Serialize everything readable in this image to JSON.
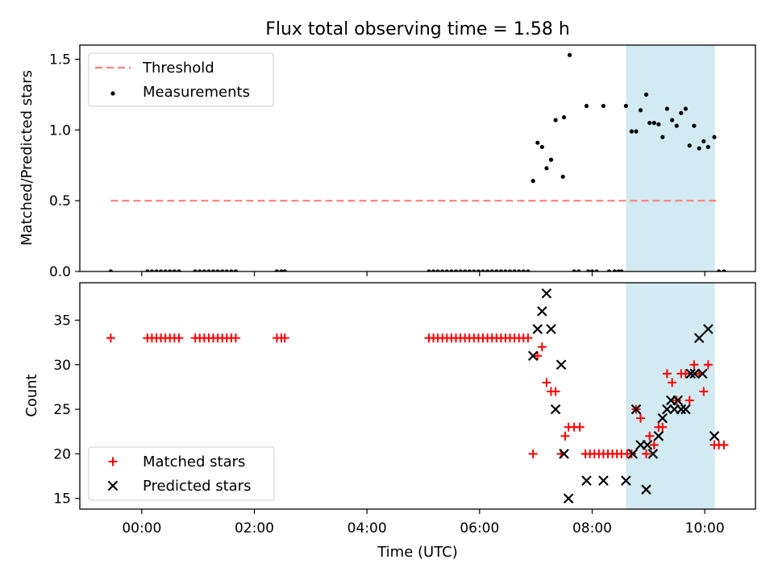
{
  "chart_data": {
    "title": "Flux total observing time = 1.58 h",
    "xlabel": "Time (UTC)",
    "xlim": [
      -1.1,
      10.9
    ],
    "xticks": [
      {
        "value": 0,
        "label": "00:00"
      },
      {
        "value": 2,
        "label": "02:00"
      },
      {
        "value": 4,
        "label": "04:00"
      },
      {
        "value": 6,
        "label": "06:00"
      },
      {
        "value": 8,
        "label": "08:00"
      },
      {
        "value": 10,
        "label": "10:00"
      }
    ],
    "highlight_span": [
      8.6,
      10.18
    ],
    "colors": {
      "highlight": "#add8e6",
      "threshold": "#ff7f7f",
      "measurements": "#000000",
      "matched": "#ff0000",
      "predicted": "#000000"
    },
    "top": {
      "type": "scatter",
      "ylabel": "Matched/Predicted stars",
      "ylim": [
        0,
        1.6
      ],
      "yticks": [
        {
          "value": 0,
          "label": "0.0"
        },
        {
          "value": 0.5,
          "label": "0.5"
        },
        {
          "value": 1.0,
          "label": "1.0"
        },
        {
          "value": 1.5,
          "label": "1.5"
        }
      ],
      "threshold": {
        "value": 0.5,
        "x_range": [
          -0.55,
          10.25
        ],
        "label": "Threshold"
      },
      "measurements_label": "Measurements",
      "measurements": [
        [
          -0.55,
          0
        ],
        [
          0.1,
          0
        ],
        [
          0.18,
          0
        ],
        [
          0.26,
          0
        ],
        [
          0.34,
          0
        ],
        [
          0.42,
          0
        ],
        [
          0.5,
          0
        ],
        [
          0.58,
          0
        ],
        [
          0.66,
          0
        ],
        [
          0.95,
          0
        ],
        [
          1.03,
          0
        ],
        [
          1.11,
          0
        ],
        [
          1.19,
          0
        ],
        [
          1.27,
          0
        ],
        [
          1.35,
          0
        ],
        [
          1.43,
          0
        ],
        [
          1.51,
          0
        ],
        [
          1.59,
          0
        ],
        [
          1.67,
          0
        ],
        [
          2.4,
          0
        ],
        [
          2.48,
          0
        ],
        [
          2.54,
          0
        ],
        [
          5.1,
          0
        ],
        [
          5.18,
          0
        ],
        [
          5.26,
          0
        ],
        [
          5.34,
          0
        ],
        [
          5.42,
          0
        ],
        [
          5.5,
          0
        ],
        [
          5.58,
          0
        ],
        [
          5.66,
          0
        ],
        [
          5.74,
          0
        ],
        [
          5.82,
          0
        ],
        [
          5.9,
          0
        ],
        [
          5.98,
          0
        ],
        [
          6.06,
          0
        ],
        [
          6.14,
          0
        ],
        [
          6.22,
          0
        ],
        [
          6.3,
          0
        ],
        [
          6.38,
          0
        ],
        [
          6.46,
          0
        ],
        [
          6.54,
          0
        ],
        [
          6.62,
          0
        ],
        [
          6.7,
          0
        ],
        [
          6.78,
          0
        ],
        [
          6.86,
          0
        ],
        [
          6.95,
          0.64
        ],
        [
          7.03,
          0.91
        ],
        [
          7.11,
          0.88
        ],
        [
          7.19,
          0.73
        ],
        [
          7.27,
          0.79
        ],
        [
          7.35,
          1.07
        ],
        [
          7.48,
          0.67
        ],
        [
          7.5,
          1.09
        ],
        [
          7.6,
          1.53
        ],
        [
          7.68,
          0
        ],
        [
          7.76,
          0
        ],
        [
          7.9,
          1.17
        ],
        [
          7.93,
          0
        ],
        [
          8.0,
          0
        ],
        [
          8.08,
          0
        ],
        [
          8.2,
          1.17
        ],
        [
          8.3,
          0
        ],
        [
          8.4,
          0
        ],
        [
          8.47,
          0
        ],
        [
          8.52,
          0
        ],
        [
          8.6,
          1.17
        ],
        [
          8.7,
          0.99
        ],
        [
          8.78,
          0.99
        ],
        [
          8.86,
          1.14
        ],
        [
          8.96,
          1.25
        ],
        [
          9.02,
          1.05
        ],
        [
          9.1,
          1.05
        ],
        [
          9.18,
          1.04
        ],
        [
          9.25,
          0.95
        ],
        [
          9.33,
          1.15
        ],
        [
          9.42,
          1.07
        ],
        [
          9.5,
          1.03
        ],
        [
          9.58,
          1.12
        ],
        [
          9.66,
          1.15
        ],
        [
          9.73,
          0.89
        ],
        [
          9.81,
          1.03
        ],
        [
          9.9,
          0.87
        ],
        [
          9.98,
          0.92
        ],
        [
          10.06,
          0.88
        ],
        [
          10.17,
          0.95
        ],
        [
          10.25,
          0
        ],
        [
          10.34,
          0
        ]
      ]
    },
    "bottom": {
      "type": "scatter",
      "ylabel": "Count",
      "ylim": [
        13.8,
        39.2
      ],
      "yticks": [
        {
          "value": 15,
          "label": "15"
        },
        {
          "value": 20,
          "label": "20"
        },
        {
          "value": 25,
          "label": "25"
        },
        {
          "value": 30,
          "label": "30"
        },
        {
          "value": 35,
          "label": "35"
        }
      ],
      "series": [
        {
          "name": "Matched stars",
          "marker": "plus",
          "points": [
            [
              -0.55,
              33
            ],
            [
              0.1,
              33
            ],
            [
              0.18,
              33
            ],
            [
              0.26,
              33
            ],
            [
              0.34,
              33
            ],
            [
              0.42,
              33
            ],
            [
              0.5,
              33
            ],
            [
              0.58,
              33
            ],
            [
              0.66,
              33
            ],
            [
              0.95,
              33
            ],
            [
              1.03,
              33
            ],
            [
              1.11,
              33
            ],
            [
              1.19,
              33
            ],
            [
              1.27,
              33
            ],
            [
              1.35,
              33
            ],
            [
              1.43,
              33
            ],
            [
              1.51,
              33
            ],
            [
              1.59,
              33
            ],
            [
              1.67,
              33
            ],
            [
              2.4,
              33
            ],
            [
              2.48,
              33
            ],
            [
              2.54,
              33
            ],
            [
              5.1,
              33
            ],
            [
              5.18,
              33
            ],
            [
              5.26,
              33
            ],
            [
              5.34,
              33
            ],
            [
              5.42,
              33
            ],
            [
              5.5,
              33
            ],
            [
              5.58,
              33
            ],
            [
              5.66,
              33
            ],
            [
              5.74,
              33
            ],
            [
              5.82,
              33
            ],
            [
              5.9,
              33
            ],
            [
              5.98,
              33
            ],
            [
              6.06,
              33
            ],
            [
              6.14,
              33
            ],
            [
              6.22,
              33
            ],
            [
              6.3,
              33
            ],
            [
              6.38,
              33
            ],
            [
              6.46,
              33
            ],
            [
              6.54,
              33
            ],
            [
              6.62,
              33
            ],
            [
              6.7,
              33
            ],
            [
              6.78,
              33
            ],
            [
              6.86,
              33
            ],
            [
              6.95,
              20
            ],
            [
              7.03,
              31
            ],
            [
              7.11,
              32
            ],
            [
              7.19,
              28
            ],
            [
              7.27,
              27
            ],
            [
              7.35,
              27
            ],
            [
              7.45,
              20
            ],
            [
              7.52,
              22
            ],
            [
              7.58,
              23
            ],
            [
              7.68,
              23
            ],
            [
              7.78,
              23
            ],
            [
              7.88,
              20
            ],
            [
              7.96,
              20
            ],
            [
              8.04,
              20
            ],
            [
              8.12,
              20
            ],
            [
              8.2,
              20
            ],
            [
              8.28,
              20
            ],
            [
              8.36,
              20
            ],
            [
              8.44,
              20
            ],
            [
              8.52,
              20
            ],
            [
              8.62,
              20
            ],
            [
              8.7,
              20
            ],
            [
              8.78,
              25
            ],
            [
              8.86,
              24
            ],
            [
              8.96,
              20
            ],
            [
              9.02,
              22
            ],
            [
              9.1,
              21
            ],
            [
              9.18,
              23
            ],
            [
              9.25,
              23
            ],
            [
              9.33,
              29
            ],
            [
              9.42,
              28
            ],
            [
              9.5,
              26
            ],
            [
              9.58,
              29
            ],
            [
              9.66,
              29
            ],
            [
              9.73,
              26
            ],
            [
              9.81,
              30
            ],
            [
              9.9,
              29
            ],
            [
              9.98,
              27
            ],
            [
              10.06,
              30
            ],
            [
              10.17,
              21
            ],
            [
              10.25,
              21
            ],
            [
              10.34,
              21
            ]
          ]
        },
        {
          "name": "Predicted stars",
          "marker": "x",
          "points": [
            [
              6.95,
              31
            ],
            [
              7.03,
              34
            ],
            [
              7.11,
              36
            ],
            [
              7.19,
              38
            ],
            [
              7.27,
              34
            ],
            [
              7.35,
              25
            ],
            [
              7.45,
              30
            ],
            [
              7.5,
              20
            ],
            [
              7.58,
              15
            ],
            [
              7.9,
              17
            ],
            [
              8.2,
              17
            ],
            [
              8.6,
              17
            ],
            [
              8.72,
              20
            ],
            [
              8.78,
              25
            ],
            [
              8.86,
              21
            ],
            [
              8.96,
              16
            ],
            [
              8.98,
              21
            ],
            [
              9.08,
              20
            ],
            [
              9.18,
              22
            ],
            [
              9.25,
              24
            ],
            [
              9.33,
              25
            ],
            [
              9.4,
              26
            ],
            [
              9.46,
              25
            ],
            [
              9.52,
              26
            ],
            [
              9.58,
              25
            ],
            [
              9.66,
              25
            ],
            [
              9.75,
              29
            ],
            [
              9.82,
              29
            ],
            [
              9.9,
              33
            ],
            [
              9.96,
              29
            ],
            [
              10.06,
              34
            ],
            [
              10.17,
              22
            ]
          ]
        }
      ]
    }
  }
}
